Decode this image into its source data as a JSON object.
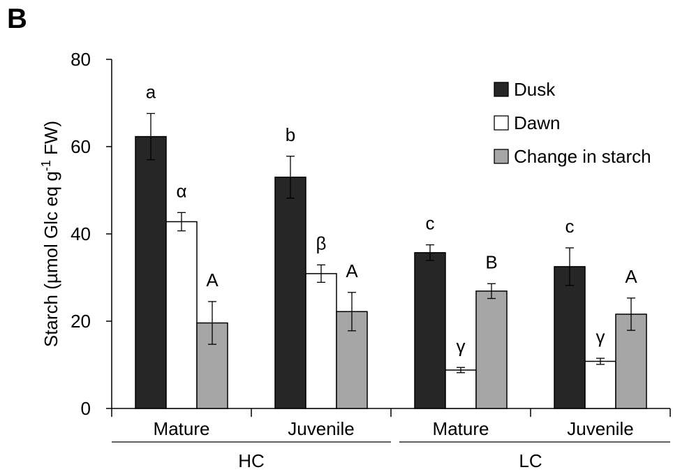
{
  "panel_letter": "B",
  "chart_data": {
    "type": "bar",
    "ylabel_main": "Starch (µmol Glc eq g",
    "ylabel_sup": "-1",
    "ylabel_end": " FW)",
    "ylim": [
      0,
      80
    ],
    "yticks": [
      0,
      20,
      40,
      60,
      80
    ],
    "categories": [
      "Mature",
      "Juvenile",
      "Mature",
      "Juvenile"
    ],
    "groups": [
      {
        "label": "HC"
      },
      {
        "label": "LC"
      }
    ],
    "legend_position": "top-right",
    "grid": false,
    "series": [
      {
        "name": "Dusk",
        "color": "#262626",
        "values": [
          62.3,
          53.0,
          35.7,
          32.5
        ],
        "errors": [
          5.3,
          4.8,
          1.8,
          4.3
        ],
        "letters": [
          "a",
          "b",
          "c",
          "c"
        ]
      },
      {
        "name": "Dawn",
        "color": "#ffffff",
        "values": [
          42.8,
          30.9,
          8.8,
          10.8
        ],
        "errors": [
          2.1,
          2.0,
          0.6,
          0.7
        ],
        "letters": [
          "α",
          "β",
          "γ",
          "γ"
        ]
      },
      {
        "name": "Change in starch",
        "color": "#a6a6a6",
        "values": [
          19.6,
          22.2,
          26.9,
          21.6
        ],
        "errors": [
          4.9,
          4.4,
          1.7,
          3.7
        ],
        "letters": [
          "A",
          "A",
          "B",
          "A"
        ]
      }
    ]
  }
}
